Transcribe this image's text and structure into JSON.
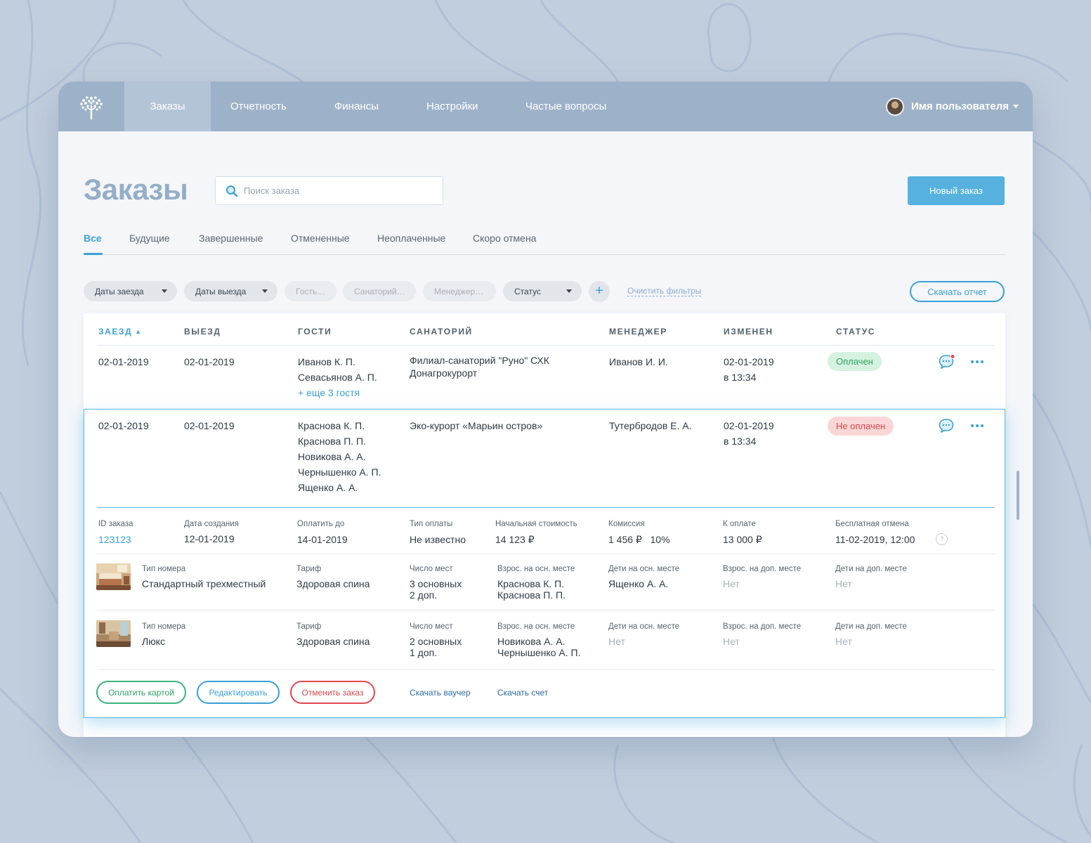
{
  "nav": {
    "items": [
      {
        "label": "Заказы",
        "active": true
      },
      {
        "label": "Отчетность"
      },
      {
        "label": "Финансы"
      },
      {
        "label": "Настройки"
      },
      {
        "label": "Частые вопросы"
      }
    ],
    "user_name": "Имя пользователя",
    "logo_icon": "tree-logo-icon"
  },
  "page": {
    "title": "Заказы",
    "search_placeholder": "Поиск заказа",
    "new_order_label": "Новый заказ"
  },
  "tabs": [
    "Все",
    "Будущие",
    "Завершенные",
    "Отмененные",
    "Неоплаченные",
    "Скоро отмена"
  ],
  "filters": {
    "items": [
      "Даты заезда",
      "Даты выезда",
      "Гость…",
      "Санаторий…",
      "Менеджер…",
      "Статус"
    ],
    "add_label": "+",
    "clear_label": "Очистить фильтры",
    "report_label": "Скачать отчет"
  },
  "table": {
    "headers": [
      "Заезд",
      "Выезд",
      "Гости",
      "Санаторий",
      "Менеджер",
      "Изменен",
      "Статус"
    ],
    "rows": [
      {
        "checkin": "02-01-2019",
        "checkout": "02-01-2019",
        "guests": [
          "Иванов К. П.",
          "Севасьянов А. П."
        ],
        "more_guests": "+ еще 3 гостя",
        "sanatorium_line1": "Филиал-санаторий \"Руно\" СХК",
        "sanatorium_line2": "Донагрокурорт",
        "manager": "Иванов И. И.",
        "changed_date": "02-01-2019",
        "changed_time": "в 13:34",
        "status": "Оплачен"
      },
      {
        "checkin": "02-01-2019",
        "checkout": "02-01-2019",
        "guests": [
          "Краснова К. П.",
          "Краснова П. П.",
          "Новикова А. А.",
          "Чернышенко А. П.",
          "Ященко А. А."
        ],
        "sanatorium_line1": "Эко-курорт «Марьин остров»",
        "manager": "Тутербродов Е. А.",
        "changed_date": "02-01-2019",
        "changed_time": "в 13:34",
        "status": "Не оплачен"
      }
    ]
  },
  "details": {
    "labels": [
      "ID заказа",
      "Дата создания",
      "Оплатить до",
      "Тип оплаты",
      "Начальная стоимость",
      "Комиссия",
      "К оплате",
      "Бесплатная отмена"
    ],
    "values": [
      "123123",
      "12-01-2019",
      "14-01-2019",
      "Не известно",
      "14 123 ₽",
      "1 456 ₽   10%",
      "13 000 ₽",
      "11-02-2019, 12:00"
    ],
    "help": "?",
    "room_labels": [
      "Тип номера",
      "Тариф",
      "Число мест",
      "Взрос. на осн. месте",
      "Дети на осн. месте",
      "Взрос. на доп. месте",
      "Дети на доп. месте"
    ],
    "rooms": [
      {
        "type": "Стандартный трехместный",
        "tariff": "Здоровая спина",
        "seats_main": "3 основных",
        "seats_extra": "2 доп.",
        "adults_main": [
          "Краснова К. П.",
          "Краснова П. П."
        ],
        "children_main": "Ященко А. А.",
        "adults_extra": "Нет",
        "children_extra": "Нет"
      },
      {
        "type": "Люкс",
        "tariff": "Здоровая спина",
        "seats_main": "2 основных",
        "seats_extra": "1 доп.",
        "adults_main": [
          "Новикова А. А.",
          "Чернышенко А. П."
        ],
        "children_main": "Нет",
        "adults_extra": "Нет",
        "children_extra": "Нет"
      }
    ],
    "actions": {
      "pay": "Оплатить картой",
      "edit": "Редактировать",
      "cancel": "Отменить заказ",
      "voucher": "Скачать ваучер",
      "invoice": "Скачать счет"
    }
  },
  "colors": {
    "accent": "#3aa0d8",
    "topbar": "#9db2c9",
    "paid": "#2fa265",
    "unpaid": "#d9484e"
  }
}
